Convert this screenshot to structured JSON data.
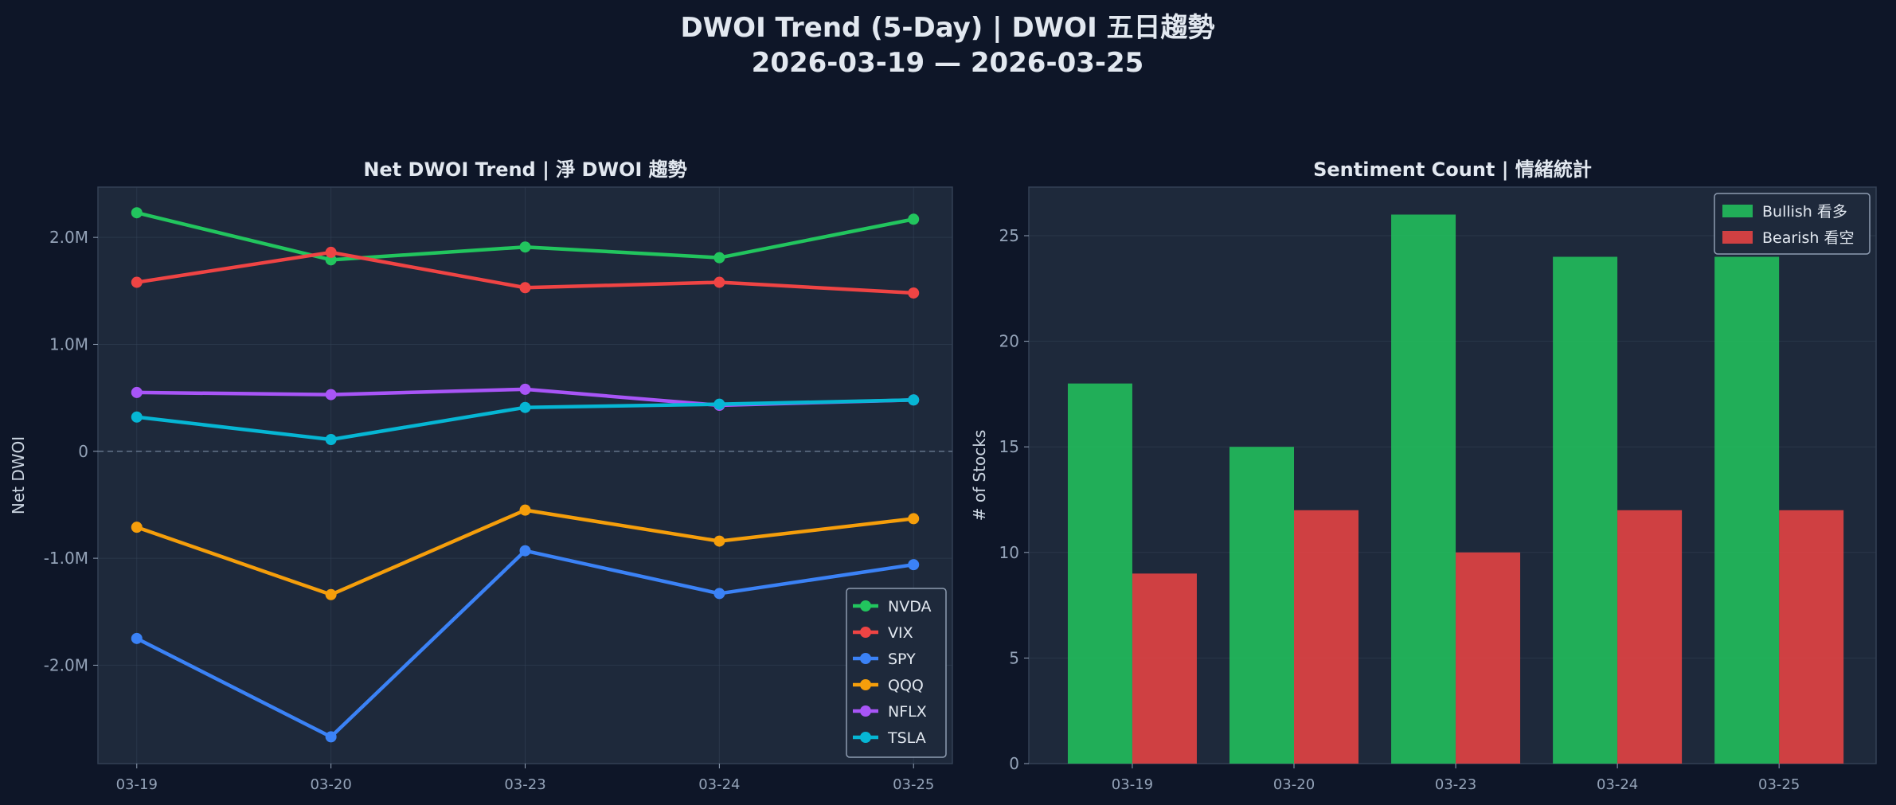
{
  "figure": {
    "title_line1": "DWOI Trend (5-Day) | DWOI 五日趨勢",
    "title_line2": "2026-03-19 — 2026-03-25",
    "background": "#0e1628",
    "axes_background": "#1e293b"
  },
  "chart_data": [
    {
      "type": "line",
      "title": "Net DWOI Trend | 淨 DWOI 趨勢",
      "xlabel": "",
      "ylabel": "Net DWOI",
      "categories": [
        "03-19",
        "03-20",
        "03-23",
        "03-24",
        "03-25"
      ],
      "ylim": [
        -2920000,
        2470000
      ],
      "yticks": [
        {
          "value": 2000000,
          "label": "2.0M"
        },
        {
          "value": 1000000,
          "label": "1.0M"
        },
        {
          "value": 0,
          "label": "0"
        },
        {
          "value": -1000000,
          "label": "-1.0M"
        },
        {
          "value": -2000000,
          "label": "-2.0M"
        }
      ],
      "zero_line": true,
      "grid": true,
      "legend_position": "lower-right",
      "series": [
        {
          "name": "NVDA",
          "color": "#22c55e",
          "values": [
            2230000,
            1790000,
            1910000,
            1810000,
            2170000
          ]
        },
        {
          "name": "VIX",
          "color": "#ef4444",
          "values": [
            1580000,
            1860000,
            1530000,
            1580000,
            1480000
          ]
        },
        {
          "name": "SPY",
          "color": "#3b82f6",
          "values": [
            -1750000,
            -2670000,
            -930000,
            -1330000,
            -1060000
          ]
        },
        {
          "name": "QQQ",
          "color": "#f59e0b",
          "values": [
            -710000,
            -1340000,
            -550000,
            -840000,
            -630000
          ]
        },
        {
          "name": "NFLX",
          "color": "#a855f7",
          "values": [
            550000,
            530000,
            580000,
            430000,
            480000
          ]
        },
        {
          "name": "TSLA",
          "color": "#06b6d4",
          "values": [
            320000,
            110000,
            410000,
            440000,
            480000
          ]
        }
      ]
    },
    {
      "type": "bar",
      "title": "Sentiment Count | 情緒統計",
      "xlabel": "",
      "ylabel": "# of Stocks",
      "categories": [
        "03-19",
        "03-20",
        "03-23",
        "03-24",
        "03-25"
      ],
      "ylim": [
        0,
        27.3
      ],
      "yticks": [
        0,
        5,
        10,
        15,
        20,
        25
      ],
      "grid": true,
      "legend_position": "upper-right",
      "series": [
        {
          "name": "Bullish 看多",
          "color": "#22c55e",
          "values": [
            18,
            15,
            26,
            24,
            24
          ]
        },
        {
          "name": "Bearish 看空",
          "color": "#ef4444",
          "values": [
            9,
            12,
            10,
            12,
            12
          ]
        }
      ]
    }
  ]
}
